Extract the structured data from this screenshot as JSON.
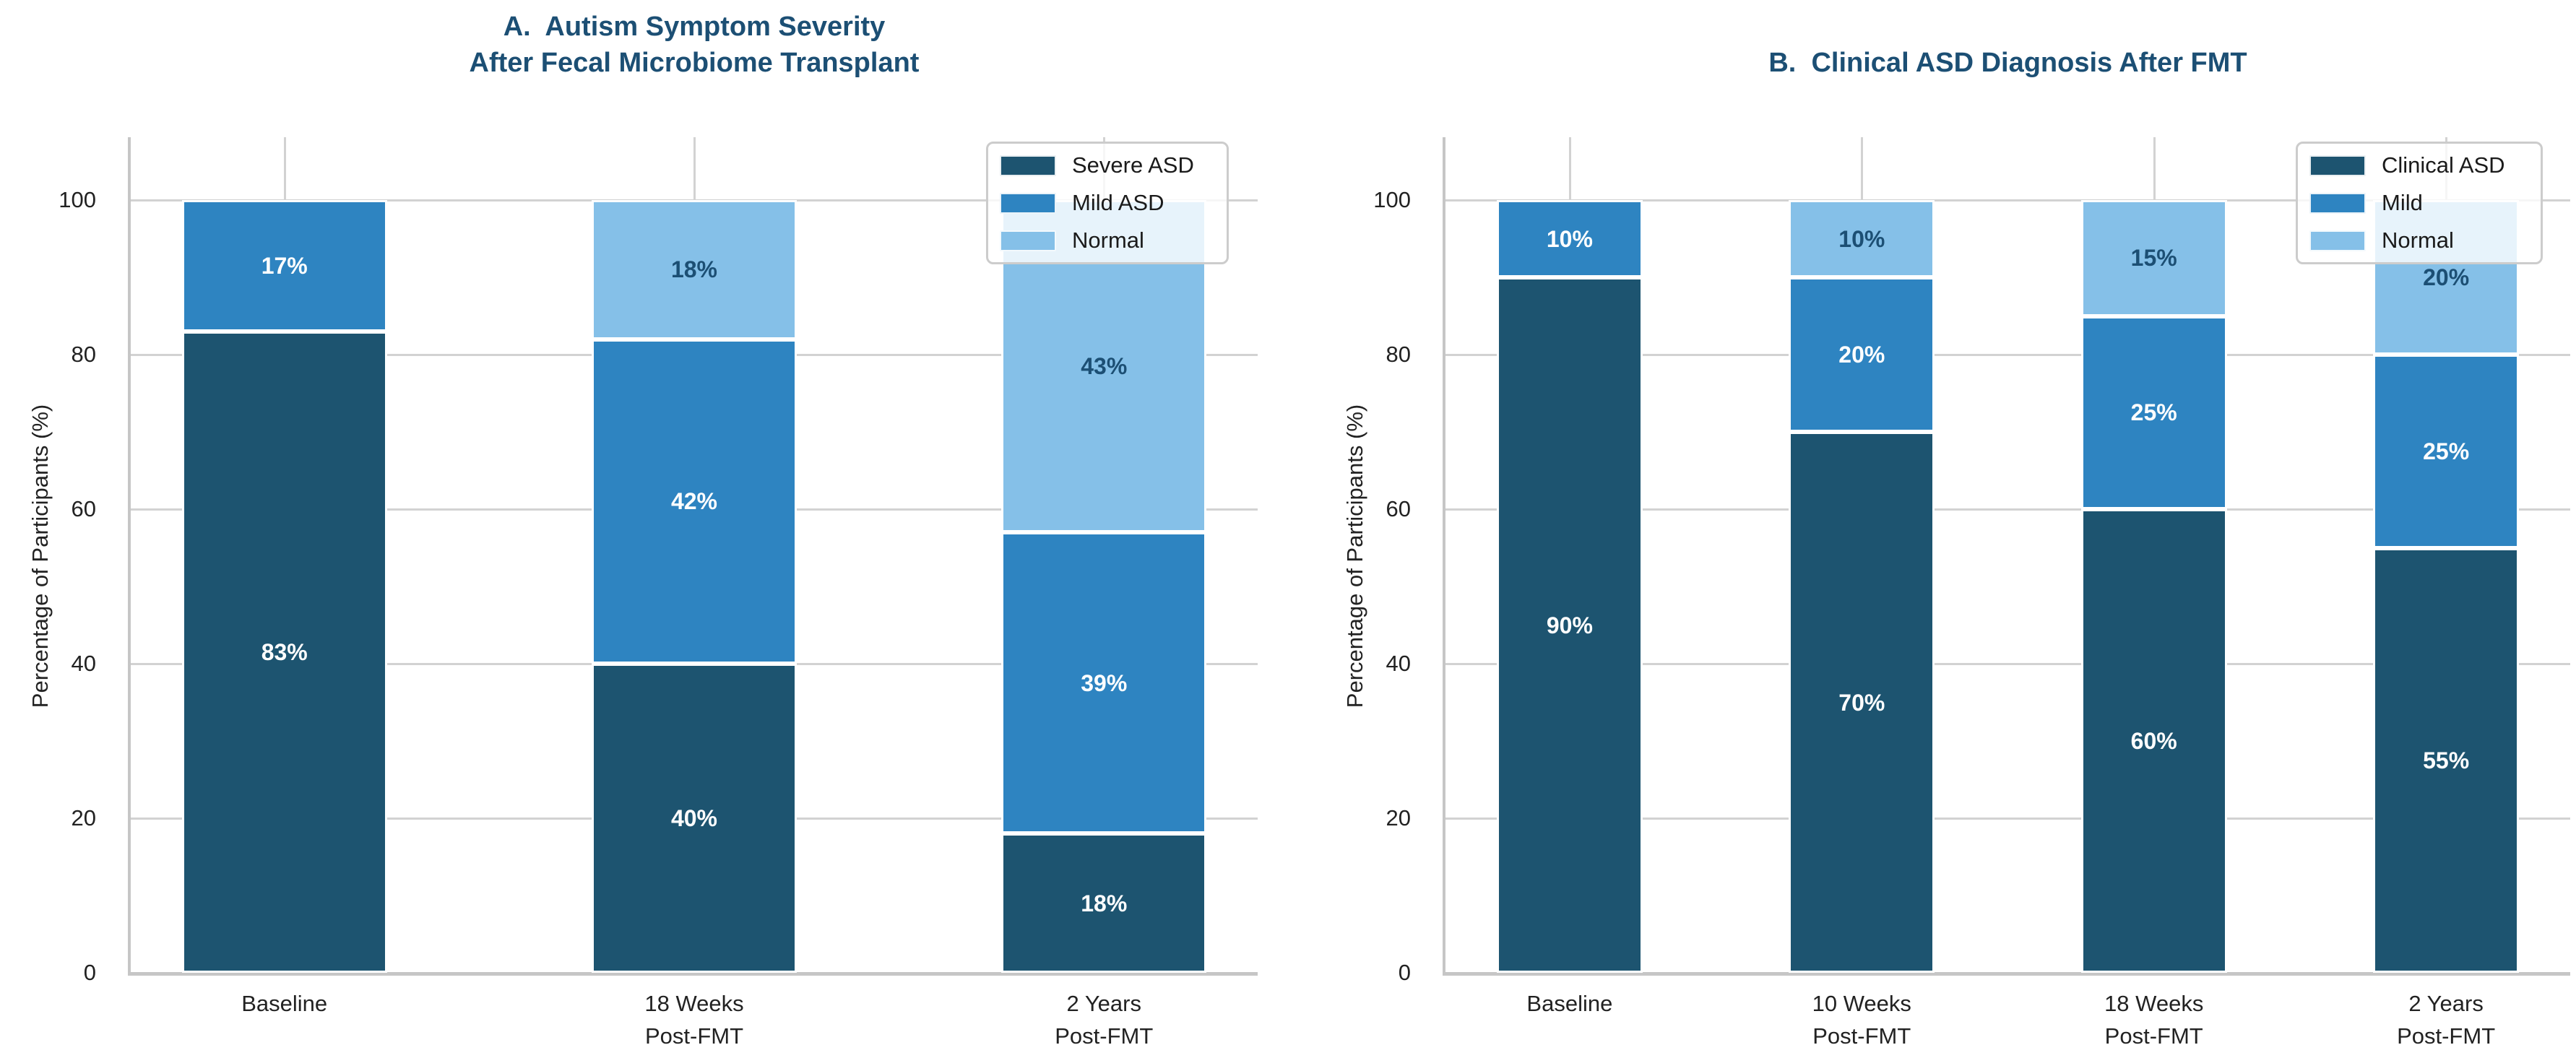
{
  "figure": {
    "background": "#ffffff"
  },
  "colors": {
    "severe": "#1d5470",
    "mild": "#2e84c1",
    "normal": "#85c0e8",
    "title_text": "#1c4f74",
    "axis_text": "#222222",
    "grid_line": "#d2d2d2",
    "spine": "#c6c6c6",
    "label_on_dark": "#ffffff",
    "label_on_light": "#1c4f74",
    "legend_border": "#cccccc",
    "legend_bg": "rgba(255,255,255,0.8)"
  },
  "chart_data": [
    {
      "type": "bar",
      "stacked": true,
      "title": "A.  Autism Symptom Severity\nAfter Fecal Microbiome Transplant",
      "ylabel": "Percentage of Participants (%)",
      "ylim": [
        0,
        100
      ],
      "yticks": [
        0,
        20,
        40,
        60,
        80,
        100
      ],
      "grid": true,
      "legend_position": "upper right",
      "label_suffix": "%",
      "categories": [
        "Baseline",
        "18 Weeks\nPost-FMT",
        "2 Years\nPost-FMT"
      ],
      "series": [
        {
          "name": "Severe ASD",
          "color_key": "severe",
          "label_color_key": "label_on_dark",
          "values": [
            83,
            40,
            18
          ]
        },
        {
          "name": "Mild ASD",
          "color_key": "mild",
          "label_color_key": "label_on_dark",
          "values": [
            17,
            42,
            39
          ]
        },
        {
          "name": "Normal",
          "color_key": "normal",
          "label_color_key": "label_on_light",
          "values": [
            0,
            18,
            43
          ]
        }
      ]
    },
    {
      "type": "bar",
      "stacked": true,
      "title": "B.  Clinical ASD Diagnosis After FMT",
      "ylabel": "Percentage of Participants (%)",
      "ylim": [
        0,
        100
      ],
      "yticks": [
        0,
        20,
        40,
        60,
        80,
        100
      ],
      "grid": true,
      "legend_position": "upper right",
      "label_suffix": "%",
      "categories": [
        "Baseline",
        "10 Weeks\nPost-FMT",
        "18 Weeks\nPost-FMT",
        "2 Years\nPost-FMT"
      ],
      "series": [
        {
          "name": "Clinical ASD",
          "color_key": "severe",
          "label_color_key": "label_on_dark",
          "values": [
            90,
            70,
            60,
            55
          ]
        },
        {
          "name": "Mild",
          "color_key": "mild",
          "label_color_key": "label_on_dark",
          "values": [
            10,
            20,
            25,
            25
          ]
        },
        {
          "name": "Normal",
          "color_key": "normal",
          "label_color_key": "label_on_light",
          "values": [
            0,
            10,
            15,
            20
          ]
        }
      ]
    }
  ]
}
